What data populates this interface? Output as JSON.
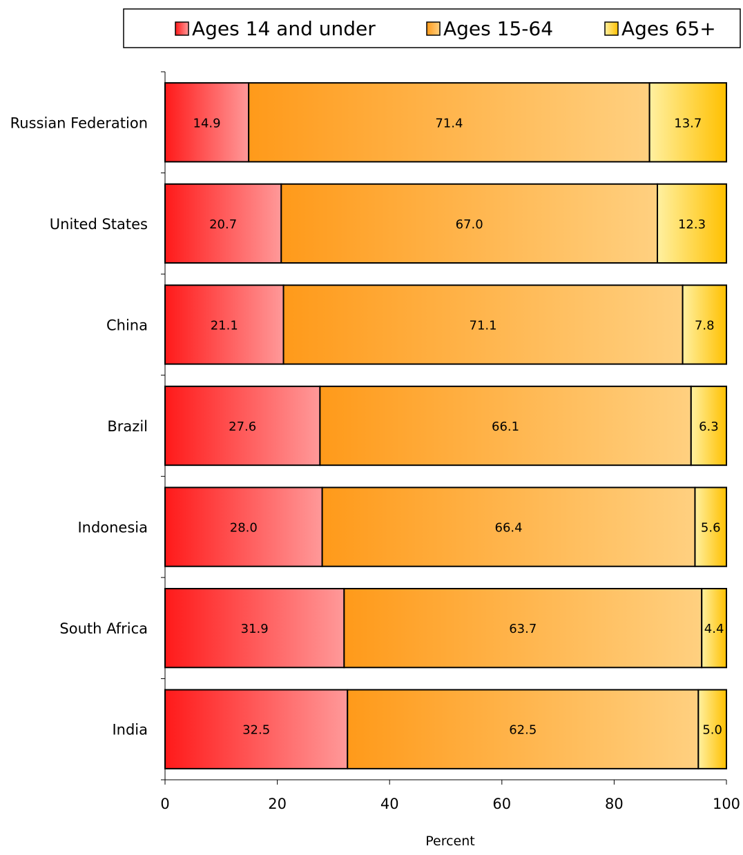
{
  "chart_data": {
    "type": "bar",
    "orientation": "horizontal",
    "stacked": true,
    "categories": [
      "Russian Federation",
      "United States",
      "China",
      "Brazil",
      "Indonesia",
      "South Africa",
      "India"
    ],
    "series": [
      {
        "name": "Ages 14 and under",
        "values": [
          14.9,
          20.7,
          21.1,
          27.6,
          28.0,
          31.9,
          32.5
        ],
        "labels": [
          "14.9",
          "20.7",
          "21.1",
          "27.6",
          "28.0",
          "31.9",
          "32.5"
        ],
        "color_start": "#ff1a1a",
        "color_end": "#ff9999"
      },
      {
        "name": "Ages 15-64",
        "values": [
          71.4,
          67.0,
          71.1,
          66.1,
          66.4,
          63.7,
          62.5
        ],
        "labels": [
          "71.4",
          "67.0",
          "71.1",
          "66.1",
          "66.4",
          "63.7",
          "62.5"
        ],
        "color_start": "#ff9a1a",
        "color_end": "#ffd080"
      },
      {
        "name": "Ages 65+",
        "values": [
          13.7,
          12.3,
          7.8,
          6.3,
          5.6,
          4.4,
          5.0
        ],
        "labels": [
          "13.7",
          "12.3",
          "7.8",
          "6.3",
          "5.6",
          "4.4",
          "5.0"
        ],
        "color_start": "#fff0a0",
        "color_end": "#ffc000"
      }
    ],
    "title": "",
    "xlabel": "Percent",
    "ylabel": "",
    "xlim": [
      0,
      100
    ],
    "xticks": [
      "0",
      "20",
      "40",
      "60",
      "80",
      "100"
    ],
    "grid": false,
    "legend_position": "top"
  }
}
